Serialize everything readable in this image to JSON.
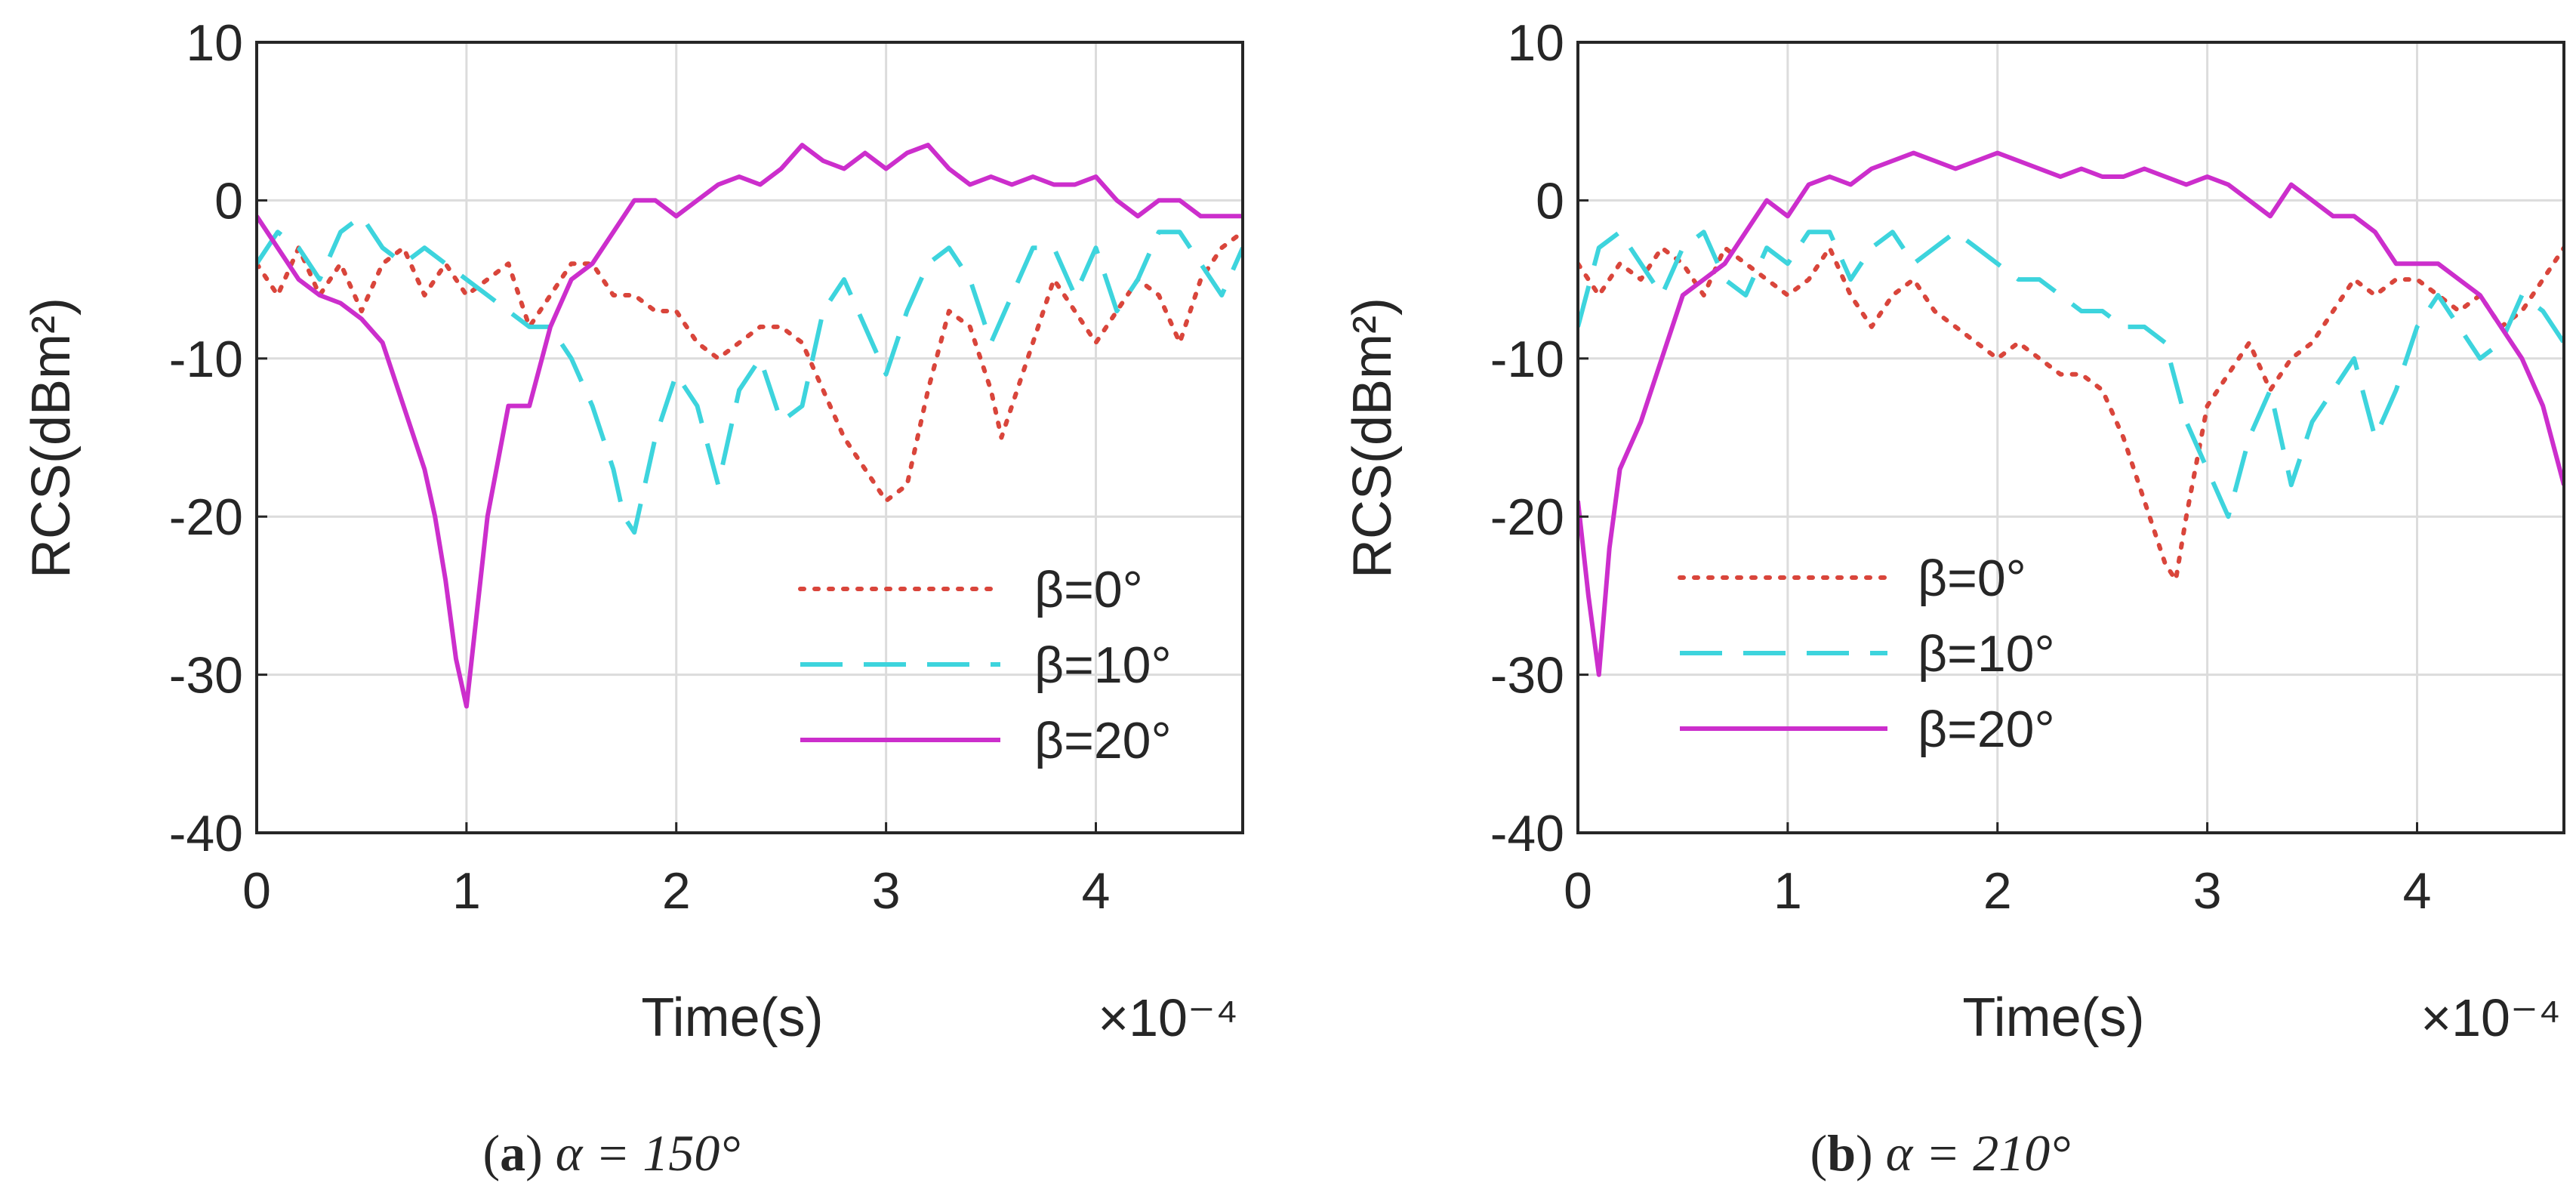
{
  "chart_data": [
    {
      "type": "line",
      "id": "a",
      "caption": {
        "letter": "a",
        "text": "α = 150°"
      },
      "xlabel": "Time(s)",
      "ylabel": "RCS(dBm²)",
      "x_multiplier": "×10⁻⁴",
      "xlim": [
        0,
        4.7
      ],
      "ylim": [
        -40,
        10
      ],
      "xticks": [
        0,
        1,
        2,
        3,
        4
      ],
      "yticks": [
        10,
        0,
        -10,
        -20,
        -30,
        -40
      ],
      "grid": true,
      "legend_position": "lower-right",
      "series": [
        {
          "name": "β=0°",
          "color": "#d9453b",
          "style": "dotted",
          "x": [
            0,
            0.1,
            0.2,
            0.3,
            0.4,
            0.5,
            0.6,
            0.7,
            0.8,
            0.9,
            1.0,
            1.1,
            1.2,
            1.3,
            1.4,
            1.5,
            1.6,
            1.7,
            1.8,
            1.9,
            2.0,
            2.1,
            2.2,
            2.3,
            2.4,
            2.5,
            2.6,
            2.7,
            2.8,
            2.9,
            3.0,
            3.1,
            3.2,
            3.3,
            3.4,
            3.5,
            3.55,
            3.6,
            3.7,
            3.8,
            3.9,
            4.0,
            4.1,
            4.2,
            4.3,
            4.4,
            4.5,
            4.6,
            4.7
          ],
          "y": [
            -4,
            -6,
            -3,
            -6,
            -4,
            -7,
            -4,
            -3,
            -6,
            -4,
            -6,
            -5,
            -4,
            -8,
            -6,
            -4,
            -4,
            -6,
            -6,
            -7,
            -7,
            -9,
            -10,
            -9,
            -8,
            -8,
            -9,
            -12,
            -15,
            -17,
            -19,
            -18,
            -12,
            -7,
            -8,
            -12,
            -15,
            -13,
            -9,
            -5,
            -7,
            -9,
            -7,
            -5,
            -6,
            -9,
            -5,
            -3,
            -2
          ]
        },
        {
          "name": "β=10°",
          "color": "#3dd4dd",
          "style": "dashed",
          "x": [
            0,
            0.1,
            0.2,
            0.3,
            0.4,
            0.5,
            0.6,
            0.7,
            0.8,
            0.9,
            1.0,
            1.1,
            1.2,
            1.3,
            1.4,
            1.5,
            1.6,
            1.7,
            1.75,
            1.8,
            1.9,
            2.0,
            2.1,
            2.2,
            2.3,
            2.4,
            2.5,
            2.6,
            2.7,
            2.8,
            2.9,
            3.0,
            3.1,
            3.2,
            3.3,
            3.4,
            3.5,
            3.6,
            3.7,
            3.8,
            3.9,
            4.0,
            4.1,
            4.2,
            4.3,
            4.4,
            4.5,
            4.6,
            4.7
          ],
          "y": [
            -4,
            -2,
            -3,
            -5,
            -2,
            -1,
            -3,
            -4,
            -3,
            -4,
            -5,
            -6,
            -7,
            -8,
            -8,
            -10,
            -13,
            -17,
            -20,
            -21,
            -15,
            -11,
            -13,
            -18,
            -12,
            -10,
            -14,
            -13,
            -7,
            -5,
            -8,
            -11,
            -7,
            -4,
            -3,
            -5,
            -9,
            -6,
            -3,
            -3,
            -6,
            -3,
            -7,
            -5,
            -2,
            -2,
            -4,
            -6,
            -3
          ]
        },
        {
          "name": "β=20°",
          "color": "#cc2ecc",
          "style": "solid",
          "x": [
            0,
            0.1,
            0.2,
            0.3,
            0.4,
            0.5,
            0.6,
            0.7,
            0.8,
            0.85,
            0.9,
            0.95,
            1.0,
            1.05,
            1.1,
            1.2,
            1.3,
            1.4,
            1.5,
            1.6,
            1.7,
            1.8,
            1.9,
            2.0,
            2.1,
            2.2,
            2.3,
            2.4,
            2.5,
            2.6,
            2.7,
            2.8,
            2.9,
            3.0,
            3.1,
            3.2,
            3.3,
            3.4,
            3.5,
            3.6,
            3.7,
            3.8,
            3.9,
            4.0,
            4.1,
            4.2,
            4.3,
            4.4,
            4.5,
            4.6,
            4.7
          ],
          "y": [
            -1,
            -3,
            -5,
            -6,
            -6.5,
            -7.5,
            -9,
            -13,
            -17,
            -20,
            -24,
            -29,
            -32,
            -26,
            -20,
            -13,
            -13,
            -8,
            -5,
            -4,
            -2,
            0,
            0,
            -1,
            0,
            1,
            1.5,
            1,
            2,
            3.5,
            2.5,
            2,
            3,
            2,
            3,
            3.5,
            2,
            1,
            1.5,
            1,
            1.5,
            1,
            1,
            1.5,
            0,
            -1,
            0,
            0,
            -1,
            -1,
            -1
          ]
        }
      ]
    },
    {
      "type": "line",
      "id": "b",
      "caption": {
        "letter": "b",
        "text": "α = 210°"
      },
      "xlabel": "Time(s)",
      "ylabel": "RCS(dBm²)",
      "x_multiplier": "×10⁻⁴",
      "xlim": [
        0,
        4.7
      ],
      "ylim": [
        -40,
        10
      ],
      "xticks": [
        0,
        1,
        2,
        3,
        4
      ],
      "yticks": [
        10,
        0,
        -10,
        -20,
        -30,
        -40
      ],
      "grid": true,
      "legend_position": "lower-left",
      "series": [
        {
          "name": "β=0°",
          "color": "#d9453b",
          "style": "dotted",
          "x": [
            0,
            0.1,
            0.2,
            0.3,
            0.4,
            0.5,
            0.6,
            0.7,
            0.8,
            0.9,
            1.0,
            1.1,
            1.2,
            1.3,
            1.4,
            1.5,
            1.6,
            1.7,
            1.8,
            1.9,
            2.0,
            2.1,
            2.2,
            2.3,
            2.4,
            2.5,
            2.6,
            2.7,
            2.8,
            2.85,
            2.9,
            3.0,
            3.1,
            3.2,
            3.3,
            3.4,
            3.5,
            3.6,
            3.7,
            3.8,
            3.9,
            4.0,
            4.1,
            4.2,
            4.3,
            4.4,
            4.5,
            4.6,
            4.7
          ],
          "y": [
            -4,
            -6,
            -4,
            -5,
            -3,
            -4,
            -6,
            -3,
            -4,
            -5,
            -6,
            -5,
            -3,
            -6,
            -8,
            -6,
            -5,
            -7,
            -8,
            -9,
            -10,
            -9,
            -10,
            -11,
            -11,
            -12,
            -15,
            -19,
            -23,
            -24,
            -20,
            -13,
            -11,
            -9,
            -12,
            -10,
            -9,
            -7,
            -5,
            -6,
            -5,
            -5,
            -6,
            -7,
            -6,
            -8,
            -7,
            -5,
            -3
          ]
        },
        {
          "name": "β=10°",
          "color": "#3dd4dd",
          "style": "dashed",
          "x": [
            0,
            0.1,
            0.2,
            0.3,
            0.4,
            0.5,
            0.6,
            0.7,
            0.8,
            0.9,
            1.0,
            1.1,
            1.2,
            1.3,
            1.4,
            1.5,
            1.6,
            1.7,
            1.8,
            1.9,
            2.0,
            2.1,
            2.2,
            2.3,
            2.4,
            2.5,
            2.6,
            2.7,
            2.8,
            2.9,
            3.0,
            3.1,
            3.2,
            3.3,
            3.4,
            3.5,
            3.6,
            3.7,
            3.8,
            3.9,
            4.0,
            4.1,
            4.2,
            4.3,
            4.4,
            4.5,
            4.6,
            4.7
          ],
          "y": [
            -8,
            -3,
            -2,
            -4,
            -6,
            -3,
            -2,
            -5,
            -6,
            -3,
            -4,
            -2,
            -2,
            -5,
            -3,
            -2,
            -4,
            -3,
            -2,
            -3,
            -4,
            -5,
            -5,
            -6,
            -7,
            -7,
            -8,
            -8,
            -9,
            -14,
            -17,
            -20,
            -15,
            -12,
            -18,
            -14,
            -12,
            -10,
            -15,
            -12,
            -8,
            -6,
            -8,
            -10,
            -9,
            -6,
            -7,
            -9
          ]
        },
        {
          "name": "β=20°",
          "color": "#cc2ecc",
          "style": "solid",
          "x": [
            0,
            0.05,
            0.1,
            0.15,
            0.2,
            0.3,
            0.4,
            0.5,
            0.6,
            0.7,
            0.8,
            0.9,
            1.0,
            1.1,
            1.2,
            1.3,
            1.4,
            1.5,
            1.6,
            1.7,
            1.8,
            1.9,
            2.0,
            2.1,
            2.2,
            2.3,
            2.4,
            2.5,
            2.6,
            2.7,
            2.8,
            2.9,
            3.0,
            3.1,
            3.2,
            3.3,
            3.4,
            3.5,
            3.6,
            3.7,
            3.8,
            3.9,
            4.0,
            4.1,
            4.2,
            4.3,
            4.4,
            4.5,
            4.6,
            4.7
          ],
          "y": [
            -19,
            -25,
            -30,
            -22,
            -17,
            -14,
            -10,
            -6,
            -5,
            -4,
            -2,
            0,
            -1,
            1,
            1.5,
            1,
            2,
            2.5,
            3,
            2.5,
            2,
            2.5,
            3,
            2.5,
            2,
            1.5,
            2,
            1.5,
            1.5,
            2,
            1.5,
            1,
            1.5,
            1,
            0,
            -1,
            1,
            0,
            -1,
            -1,
            -2,
            -4,
            -4,
            -4,
            -5,
            -6,
            -8,
            -10,
            -13,
            -18
          ]
        }
      ]
    }
  ]
}
